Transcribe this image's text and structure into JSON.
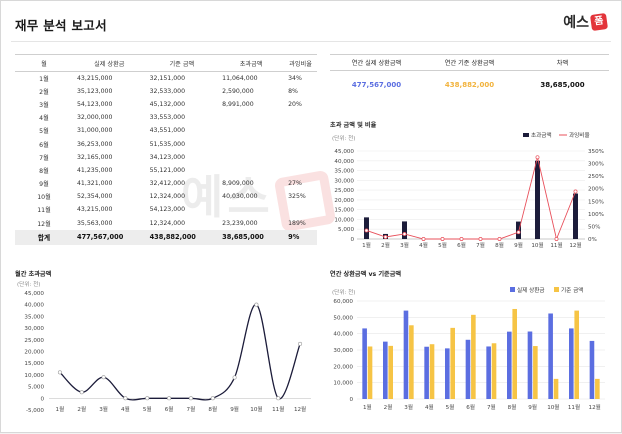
{
  "header": {
    "title": "재무 분석 보고서",
    "logo_text": "예스",
    "logo_box": "폼"
  },
  "table": {
    "headers": [
      "월",
      "실제 상환금",
      "기준 금액",
      "초과금액",
      "과잉비율"
    ],
    "rows": [
      [
        "1월",
        "43,215,000",
        "32,151,000",
        "11,064,000",
        "34%"
      ],
      [
        "2월",
        "35,123,000",
        "32,533,000",
        "2,590,000",
        "8%"
      ],
      [
        "3월",
        "54,123,000",
        "45,132,000",
        "8,991,000",
        "20%"
      ],
      [
        "4월",
        "32,000,000",
        "33,553,000",
        "",
        ""
      ],
      [
        "5월",
        "31,000,000",
        "43,551,000",
        "",
        ""
      ],
      [
        "6월",
        "36,253,000",
        "51,535,000",
        "",
        ""
      ],
      [
        "7월",
        "32,165,000",
        "34,123,000",
        "",
        ""
      ],
      [
        "8월",
        "41,235,000",
        "55,121,000",
        "",
        ""
      ],
      [
        "9월",
        "41,321,000",
        "32,412,000",
        "8,909,000",
        "27%"
      ],
      [
        "10월",
        "52,354,000",
        "12,324,000",
        "40,030,000",
        "325%"
      ],
      [
        "11월",
        "43,215,000",
        "54,123,000",
        "",
        ""
      ],
      [
        "12월",
        "35,563,000",
        "12,324,000",
        "23,239,000",
        "189%"
      ]
    ],
    "total": [
      "합계",
      "477,567,000",
      "438,882,000",
      "38,685,000",
      "9%"
    ]
  },
  "summary": {
    "headers": [
      "연간 실제 상환금액",
      "연간 기준 상환금액",
      "차액"
    ],
    "values": [
      "477,567,000",
      "438,882,000",
      "38,685,000"
    ],
    "colors": [
      "#5b6ee1",
      "#f2b33d",
      "#111111"
    ]
  },
  "chart_data": [
    {
      "type": "bar",
      "title": "초과 금액 및 비율",
      "unit": "(단위: 천)",
      "categories": [
        "1월",
        "2월",
        "3월",
        "4월",
        "5월",
        "6월",
        "7월",
        "8월",
        "9월",
        "10월",
        "11월",
        "12월"
      ],
      "series": [
        {
          "name": "초과금액",
          "values": [
            11064,
            2590,
            8991,
            0,
            0,
            0,
            0,
            0,
            8909,
            40030,
            0,
            23239
          ],
          "color": "#1c1c3a"
        },
        {
          "name": "과잉비율",
          "type": "line",
          "axis": "right",
          "values": [
            34,
            8,
            20,
            0,
            0,
            0,
            0,
            0,
            27,
            325,
            0,
            189
          ],
          "color": "#e8505b"
        }
      ],
      "yticks": [
        "0",
        "5,000",
        "10,000",
        "15,000",
        "20,000",
        "25,000",
        "30,000",
        "35,000",
        "40,000",
        "45,000"
      ],
      "ylim": [
        0,
        45000
      ],
      "y2ticks": [
        "0%",
        "50%",
        "100%",
        "150%",
        "200%",
        "250%",
        "300%",
        "350%"
      ],
      "y2lim": [
        0,
        350
      ],
      "legend": "top-right"
    },
    {
      "type": "line",
      "title": "월간 초과금액",
      "unit": "(단위: 천)",
      "categories": [
        "1월",
        "2월",
        "3월",
        "4월",
        "5월",
        "6월",
        "7월",
        "8월",
        "9월",
        "10월",
        "11월",
        "12월"
      ],
      "series": [
        {
          "name": "초과금액",
          "values": [
            11064,
            2590,
            8991,
            0,
            0,
            0,
            0,
            0,
            8909,
            40030,
            0,
            23239
          ],
          "color": "#1c1c3a"
        }
      ],
      "yticks": [
        "-5,000",
        "0",
        "5,000",
        "10,000",
        "15,000",
        "20,000",
        "25,000",
        "30,000",
        "35,000",
        "40,000",
        "45,000"
      ],
      "ylim": [
        -5000,
        45000
      ]
    },
    {
      "type": "bar",
      "title": "연간 상환금액 vs 기준금액",
      "unit": "(단위: 천)",
      "categories": [
        "1월",
        "2월",
        "3월",
        "4월",
        "5월",
        "6월",
        "7월",
        "8월",
        "9월",
        "10월",
        "11월",
        "12월"
      ],
      "series": [
        {
          "name": "실제 상환금",
          "values": [
            43215,
            35123,
            54123,
            32000,
            31000,
            36253,
            32165,
            41235,
            41321,
            52354,
            43215,
            35563
          ],
          "color": "#5b6ee1"
        },
        {
          "name": "기준 금액",
          "values": [
            32151,
            32533,
            45132,
            33553,
            43551,
            51535,
            34123,
            55121,
            32412,
            12324,
            54123,
            12324
          ],
          "color": "#f6c445"
        }
      ],
      "yticks": [
        "0",
        "10,000",
        "20,000",
        "30,000",
        "40,000",
        "50,000",
        "60,000"
      ],
      "ylim": [
        0,
        60000
      ],
      "legend": "top"
    }
  ]
}
